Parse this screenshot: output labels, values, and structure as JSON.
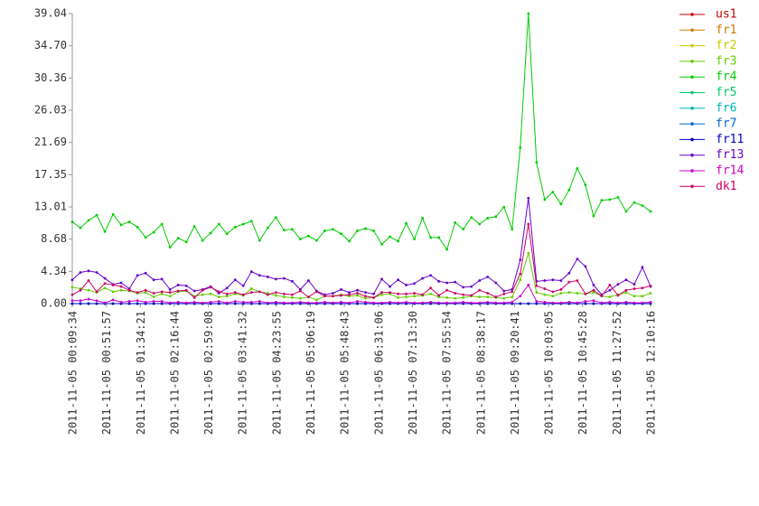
{
  "chart_data": {
    "type": "line",
    "xticks": [
      "2011-11-05 00:09:34",
      "2011-11-05 00:51:57",
      "2011-11-05 01:34:21",
      "2011-11-05 02:16:44",
      "2011-11-05 02:59:08",
      "2011-11-05 03:41:32",
      "2011-11-05 04:23:55",
      "2011-11-05 05:06:19",
      "2011-11-05 05:48:43",
      "2011-11-05 06:31:06",
      "2011-11-05 07:13:30",
      "2011-11-05 07:55:54",
      "2011-11-05 08:38:17",
      "2011-11-05 09:20:41",
      "2011-11-05 10:03:05",
      "2011-11-05 10:45:28",
      "2011-11-05 11:27:52",
      "2011-11-05 12:10:16"
    ],
    "ylim": [
      0,
      39.04
    ],
    "yticks": [
      {
        "value": 0,
        "label": "0.00"
      },
      4.34,
      8.68,
      13.01,
      17.35,
      21.69,
      26.03,
      30.36,
      {
        "value": 34.7,
        "label": "34.70"
      },
      39.04
    ],
    "grid": false,
    "legend": "right",
    "series": [
      {
        "name": "us1",
        "color": "#cc0000",
        "values": [
          0,
          0,
          0,
          0,
          0,
          0,
          0,
          0,
          0,
          0,
          0,
          0,
          0,
          0,
          0,
          0,
          0,
          0,
          0,
          0,
          0,
          0,
          0,
          0,
          0,
          0,
          0,
          0,
          0,
          0,
          0,
          0,
          0,
          0,
          0,
          0,
          0,
          0,
          0,
          0,
          0,
          0,
          0,
          0,
          0,
          0,
          0,
          0,
          0,
          0,
          0,
          0,
          0,
          0,
          0,
          0,
          0,
          0,
          0,
          0,
          0,
          0,
          0,
          0,
          0,
          0,
          0,
          0,
          0,
          0,
          0,
          0
        ]
      },
      {
        "name": "fr1",
        "color": "#cc7a00",
        "values": [
          0,
          0,
          0,
          0,
          0,
          0,
          0,
          0,
          0,
          0,
          0,
          0,
          0,
          0,
          0,
          0,
          0,
          0,
          0,
          0,
          0,
          0,
          0,
          0,
          0,
          0,
          0,
          0,
          0,
          0,
          0,
          0,
          0,
          0,
          0,
          0,
          0,
          0,
          0,
          0,
          0,
          0,
          0,
          0,
          0,
          0,
          0,
          0,
          0,
          0,
          0,
          0,
          0,
          0,
          0,
          0,
          0,
          0,
          0,
          0,
          0,
          0,
          0,
          0,
          0,
          0,
          0,
          0,
          0,
          0,
          0,
          0
        ]
      },
      {
        "name": "fr2",
        "color": "#c8c800",
        "values": [
          0,
          0,
          0,
          0,
          0,
          0,
          0,
          0,
          0,
          0,
          0,
          0,
          0,
          0,
          0,
          0,
          0,
          0,
          0,
          0,
          0,
          0,
          0,
          0,
          0,
          0,
          0,
          0,
          0,
          0,
          0,
          0,
          0,
          0,
          0,
          0,
          0,
          0,
          0,
          0,
          0,
          0,
          0,
          0,
          0,
          0,
          0,
          0,
          0,
          0,
          0,
          0,
          0,
          0,
          0,
          0,
          0,
          0,
          0,
          0,
          0,
          0,
          0,
          0,
          0,
          0,
          0,
          0,
          0,
          0,
          0,
          0
        ]
      },
      {
        "name": "fr3",
        "color": "#66cc00",
        "values": [
          2.2,
          2.0,
          1.8,
          1.5,
          2.1,
          1.6,
          1.8,
          1.7,
          1.4,
          1.5,
          0.9,
          1.3,
          1.0,
          1.6,
          1.7,
          1.0,
          1.2,
          1.3,
          0.9,
          1.0,
          1.3,
          1.1,
          2.0,
          1.6,
          1.4,
          1.1,
          0.9,
          0.8,
          0.7,
          0.9,
          0.5,
          1.0,
          1.0,
          1.2,
          1.0,
          1.1,
          0.7,
          0.8,
          1.2,
          1.3,
          0.8,
          0.9,
          1.0,
          1.1,
          1.3,
          0.9,
          0.8,
          0.7,
          0.8,
          1.0,
          0.9,
          0.9,
          0.8,
          0.7,
          0.9,
          3.2,
          6.8,
          1.5,
          1.2,
          1.0,
          1.4,
          1.5,
          1.4,
          1.3,
          1.5,
          1.0,
          0.9,
          1.2,
          1.5,
          1.0,
          1.0,
          1.4
        ]
      },
      {
        "name": "fr4",
        "color": "#00cc00",
        "values": [
          11,
          10.2,
          11.2,
          11.9,
          9.7,
          12,
          10.6,
          11,
          10.3,
          8.9,
          9.6,
          10.7,
          7.6,
          8.8,
          8.3,
          10.4,
          8.5,
          9.5,
          10.7,
          9.4,
          10.3,
          10.7,
          11.1,
          8.5,
          10.2,
          11.6,
          9.9,
          10,
          8.7,
          9.1,
          8.5,
          9.8,
          10,
          9.4,
          8.4,
          9.8,
          10.1,
          9.8,
          8,
          9,
          8.4,
          10.8,
          8.7,
          11.5,
          8.9,
          8.9,
          7.3,
          10.9,
          10,
          11.6,
          10.7,
          11.5,
          11.7,
          13,
          10,
          21,
          39.04,
          19,
          14,
          15,
          13.4,
          15.3,
          18.2,
          16,
          11.8,
          13.9,
          14,
          14.3,
          12.4,
          13.6,
          13.2,
          12.4
        ]
      },
      {
        "name": "fr5",
        "color": "#00cc66",
        "values": [
          0,
          0,
          0,
          0,
          0,
          0,
          0,
          0,
          0,
          0,
          0,
          0,
          0,
          0,
          0,
          0,
          0,
          0,
          0,
          0,
          0,
          0,
          0,
          0,
          0,
          0,
          0,
          0,
          0,
          0,
          0,
          0,
          0,
          0,
          0,
          0,
          0,
          0,
          0,
          0,
          0,
          0,
          0,
          0,
          0,
          0,
          0,
          0,
          0,
          0,
          0,
          0,
          0,
          0,
          0,
          0,
          0,
          0,
          0,
          0,
          0,
          0,
          0,
          0,
          0,
          0,
          0,
          0,
          0,
          0,
          0,
          0
        ]
      },
      {
        "name": "fr6",
        "color": "#00b4b4",
        "values": [
          0,
          0,
          0,
          0,
          0,
          0,
          0,
          0,
          0,
          0,
          0,
          0,
          0,
          0,
          0,
          0,
          0,
          0,
          0,
          0,
          0,
          0,
          0,
          0,
          0,
          0,
          0,
          0,
          0,
          0,
          0,
          0,
          0,
          0,
          0,
          0,
          0,
          0,
          0,
          0,
          0,
          0,
          0,
          0,
          0,
          0,
          0,
          0,
          0,
          0,
          0,
          0,
          0,
          0,
          0,
          0,
          0,
          0,
          0,
          0,
          0,
          0,
          0,
          0,
          0,
          0,
          0,
          0,
          0,
          0,
          0,
          0
        ]
      },
      {
        "name": "fr7",
        "color": "#0066cc",
        "values": [
          0,
          0,
          0,
          0,
          0,
          0,
          0,
          0,
          0,
          0,
          0,
          0,
          0,
          0,
          0,
          0,
          0,
          0,
          0,
          0,
          0,
          0,
          0,
          0,
          0,
          0,
          0,
          0,
          0,
          0,
          0,
          0,
          0,
          0,
          0,
          0,
          0,
          0,
          0,
          0,
          0,
          0,
          0,
          0,
          0,
          0,
          0,
          0,
          0,
          0,
          0,
          0,
          0,
          0,
          0,
          0,
          0,
          0,
          0,
          0,
          0,
          0,
          0,
          0,
          0,
          0,
          0,
          0,
          0,
          0,
          0,
          0
        ]
      },
      {
        "name": "fr11",
        "color": "#0000cc",
        "values": [
          0,
          0,
          0,
          0,
          0,
          0,
          0,
          0,
          0,
          0,
          0,
          0,
          0,
          0,
          0,
          0,
          0,
          0,
          0,
          0,
          0,
          0,
          0,
          0,
          0,
          0,
          0,
          0,
          0,
          0,
          0,
          0,
          0,
          0,
          0,
          0,
          0,
          0,
          0,
          0,
          0,
          0,
          0,
          0,
          0,
          0,
          0,
          0,
          0,
          0,
          0,
          0,
          0,
          0,
          0,
          0,
          0,
          0,
          0,
          0,
          0,
          0,
          0,
          0,
          0,
          0,
          0,
          0,
          0,
          0,
          0,
          0
        ]
      },
      {
        "name": "fr13",
        "color": "#6600cc",
        "values": [
          3.2,
          4.2,
          4.4,
          4.2,
          3.4,
          2.6,
          2.8,
          2.0,
          3.8,
          4.1,
          3.2,
          3.3,
          1.9,
          2.5,
          2.4,
          1.7,
          1.9,
          2.3,
          1.4,
          2.1,
          3.2,
          2.4,
          4.3,
          3.8,
          3.6,
          3.3,
          3.4,
          3.0,
          1.9,
          3.1,
          1.7,
          1.2,
          1.4,
          1.9,
          1.5,
          1.8,
          1.5,
          1.3,
          3.3,
          2.3,
          3.2,
          2.5,
          2.7,
          3.4,
          3.8,
          3.0,
          2.8,
          2.9,
          2.2,
          2.3,
          3.1,
          3.6,
          2.8,
          1.7,
          1.9,
          5.9,
          14.2,
          3.0,
          3.1,
          3.2,
          3.1,
          4.1,
          6.0,
          5.0,
          2.5,
          1.2,
          1.8,
          2.6,
          3.2,
          2.6,
          4.9,
          2.3
        ]
      },
      {
        "name": "fr14",
        "color": "#cc00cc",
        "values": [
          0.4,
          0.4,
          0.6,
          0.4,
          0.1,
          0.5,
          0.2,
          0.3,
          0.4,
          0.2,
          0.3,
          0.3,
          0.1,
          0.2,
          0.1,
          0.2,
          0.1,
          0.2,
          0.3,
          0.1,
          0.3,
          0.2,
          0.2,
          0.3,
          0.1,
          0.2,
          0.1,
          0.1,
          0.2,
          0.1,
          0.1,
          0.2,
          0.1,
          0.2,
          0.1,
          0.3,
          0.2,
          0.1,
          0.1,
          0.2,
          0.1,
          0.2,
          0.1,
          0.1,
          0.2,
          0.1,
          0.1,
          0.1,
          0.2,
          0.1,
          0.1,
          0.2,
          0.1,
          0.1,
          0.2,
          1.0,
          2.5,
          0.3,
          0.2,
          0.1,
          0.1,
          0.2,
          0.1,
          0.3,
          0.4,
          0.1,
          0.2,
          0.1,
          0.2,
          0.1,
          0.1,
          0.2
        ]
      },
      {
        "name": "dk1",
        "color": "#cc0066",
        "values": [
          1.2,
          1.8,
          3.1,
          1.6,
          2.7,
          2.5,
          2.3,
          1.8,
          1.5,
          1.8,
          1.4,
          1.6,
          1.5,
          1.7,
          1.8,
          0.8,
          1.8,
          2.2,
          1.6,
          1.3,
          1.5,
          1.2,
          1.5,
          1.6,
          1.2,
          1.5,
          1.3,
          1.2,
          1.7,
          0.9,
          1.6,
          1.0,
          1.0,
          1.1,
          1.2,
          1.4,
          1.0,
          0.8,
          1.5,
          1.5,
          1.3,
          1.3,
          1.4,
          1.2,
          2.1,
          1.1,
          1.8,
          1.4,
          1.2,
          1.1,
          1.8,
          1.4,
          0.9,
          1.3,
          1.6,
          4.0,
          10.7,
          2.4,
          2.0,
          1.6,
          1.9,
          2.9,
          3.1,
          1.3,
          1.8,
          1.0,
          2.5,
          1.1,
          1.8,
          2.0,
          2.1,
          2.4
        ]
      }
    ]
  }
}
